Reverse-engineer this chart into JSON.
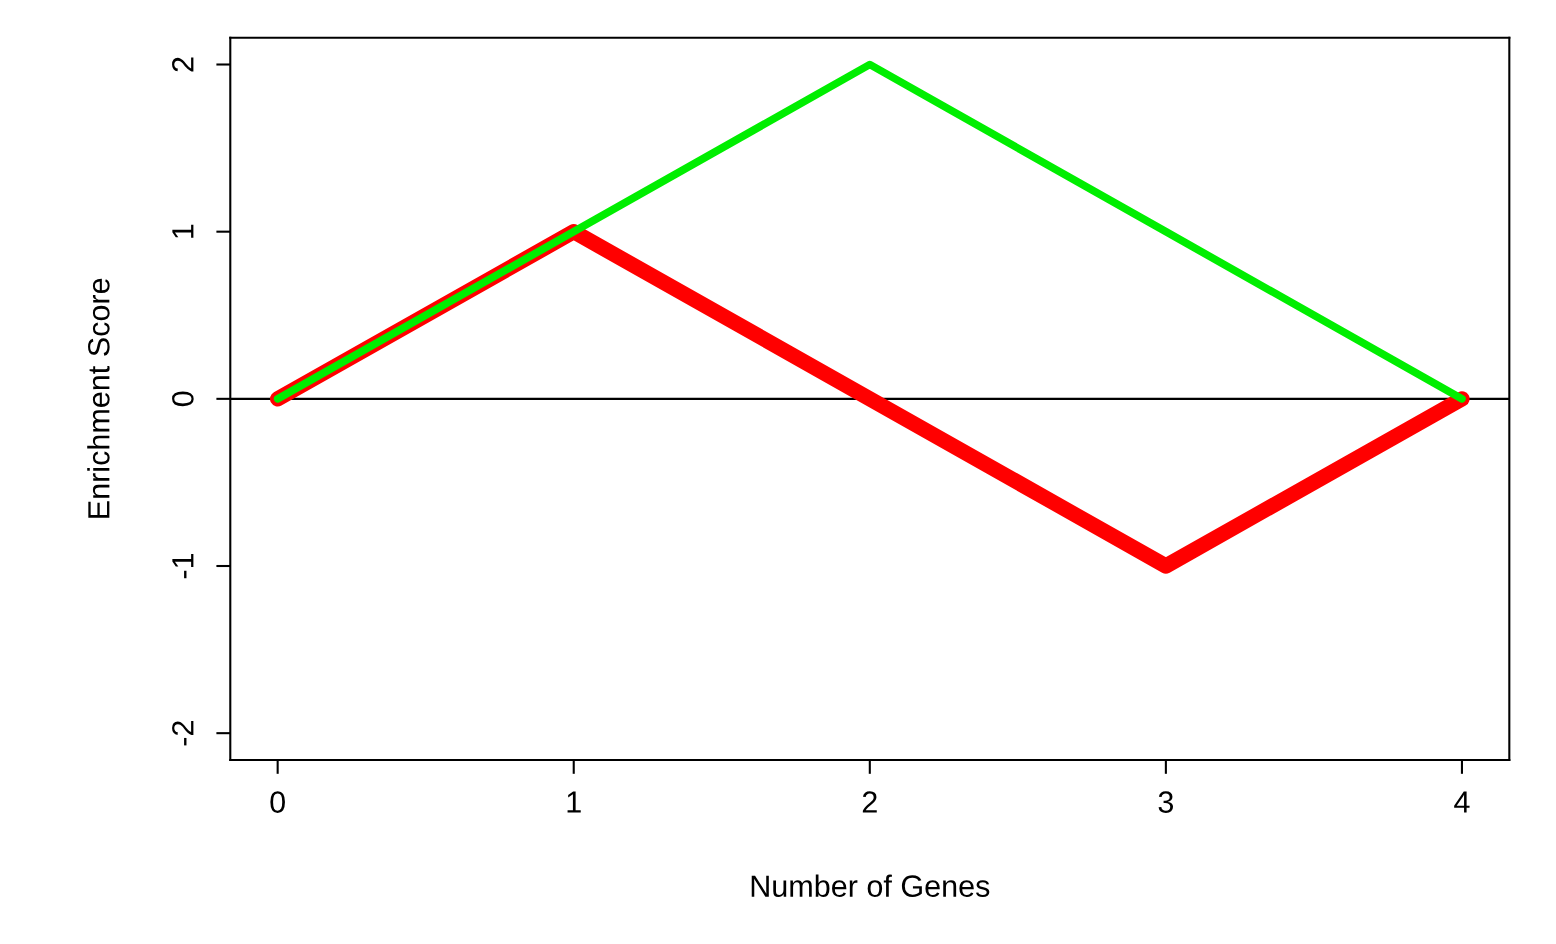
{
  "chart_data": {
    "type": "line",
    "xlabel": "Number of Genes",
    "ylabel": "Enrichment Score",
    "x": [
      0,
      1,
      2,
      3,
      4
    ],
    "series": [
      {
        "color": "#ff0000",
        "values": [
          0,
          1,
          0,
          -1,
          0
        ]
      },
      {
        "color": "#00ee00",
        "values": [
          0,
          1,
          2,
          1,
          0
        ]
      }
    ],
    "xlim": [
      -0.16,
      4.16
    ],
    "ylim": [
      -2.16,
      2.16
    ],
    "xticks": [
      0,
      1,
      2,
      3,
      4
    ],
    "yticks": [
      -2,
      -1,
      0,
      1,
      2
    ],
    "ref_lines": [
      {
        "axis": "y",
        "value": 0,
        "color": "#000000",
        "line_style": "solid"
      }
    ],
    "grid": false,
    "legend": false,
    "line_style": "solid",
    "marker": "none"
  }
}
